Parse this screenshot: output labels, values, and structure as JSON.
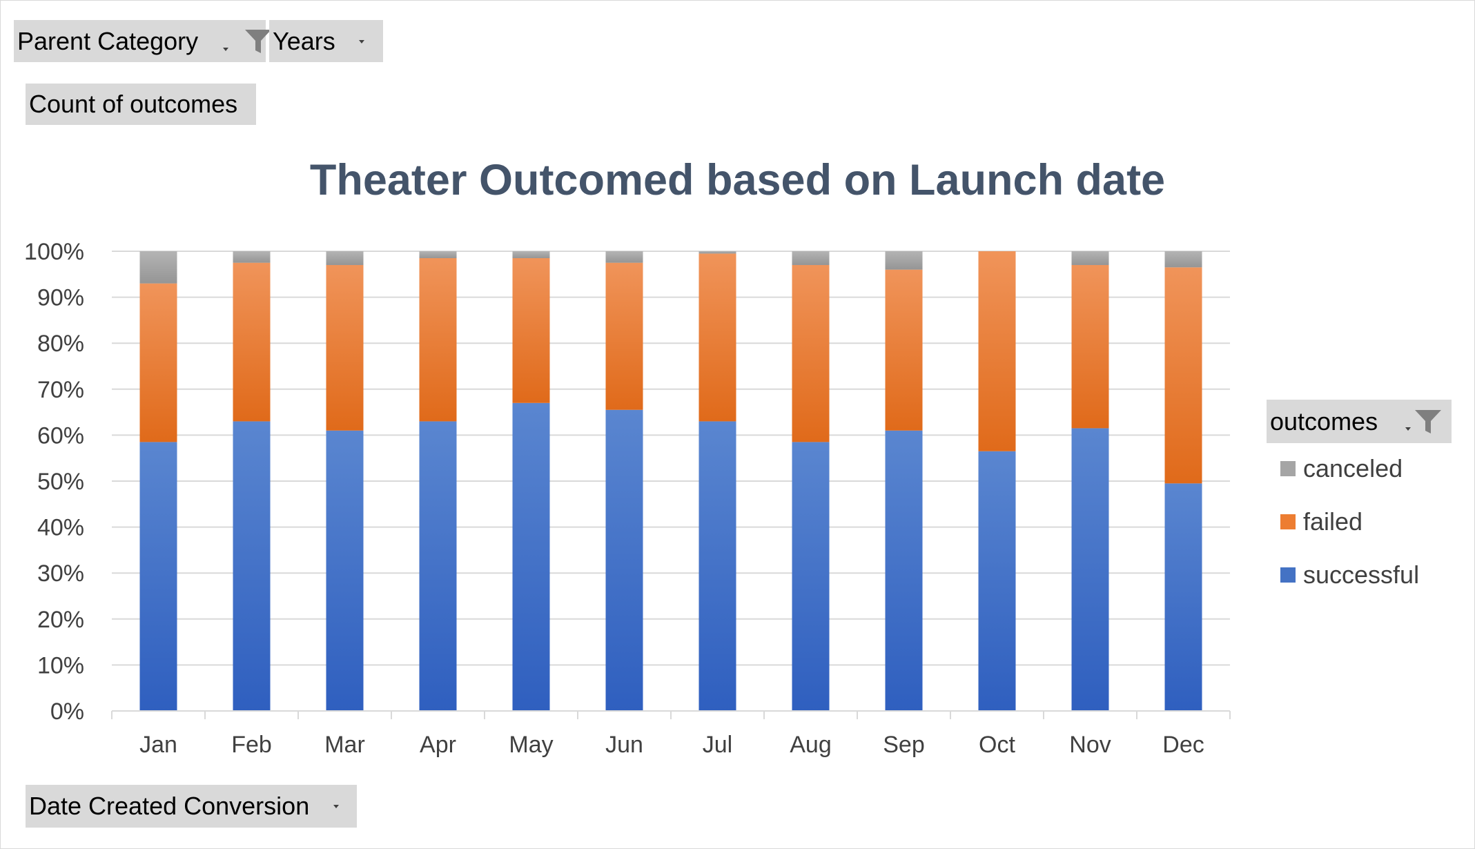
{
  "pivot_fields": {
    "parent_category": "Parent Category",
    "years": "Years",
    "values_field": "Count of outcomes",
    "axis_field": "Date Created Conversion",
    "legend_field": "outcomes"
  },
  "icons": {
    "filter": "filter-funnel-icon",
    "dropdown": "dropdown-arrow-icon"
  },
  "colors": {
    "successful": "#4472c4",
    "failed": "#ed7d31",
    "canceled": "#a5a5a5",
    "title": "#44546a",
    "axis_text": "#404040",
    "grid": "#d9d9d9"
  },
  "chart_data": {
    "type": "bar",
    "stacked": "100%",
    "title": "Theater Outcomed based on Launch date",
    "xlabel": "",
    "ylabel": "",
    "ylim": [
      0,
      1
    ],
    "yticks": [
      "0%",
      "10%",
      "20%",
      "30%",
      "40%",
      "50%",
      "60%",
      "70%",
      "80%",
      "90%",
      "100%"
    ],
    "categories": [
      "Jan",
      "Feb",
      "Mar",
      "Apr",
      "May",
      "Jun",
      "Jul",
      "Aug",
      "Sep",
      "Oct",
      "Nov",
      "Dec"
    ],
    "series": [
      {
        "name": "successful",
        "color": "#4472c4",
        "values": [
          0.585,
          0.63,
          0.61,
          0.63,
          0.67,
          0.655,
          0.63,
          0.585,
          0.61,
          0.565,
          0.615,
          0.495
        ]
      },
      {
        "name": "failed",
        "color": "#ed7d31",
        "values": [
          0.345,
          0.345,
          0.36,
          0.355,
          0.315,
          0.32,
          0.365,
          0.385,
          0.35,
          0.435,
          0.355,
          0.47
        ]
      },
      {
        "name": "canceled",
        "color": "#a5a5a5",
        "values": [
          0.07,
          0.025,
          0.03,
          0.015,
          0.015,
          0.025,
          0.005,
          0.03,
          0.04,
          0.0,
          0.03,
          0.035
        ]
      }
    ],
    "legend": [
      "canceled",
      "failed",
      "successful"
    ],
    "legend_position": "right",
    "grid": true
  }
}
